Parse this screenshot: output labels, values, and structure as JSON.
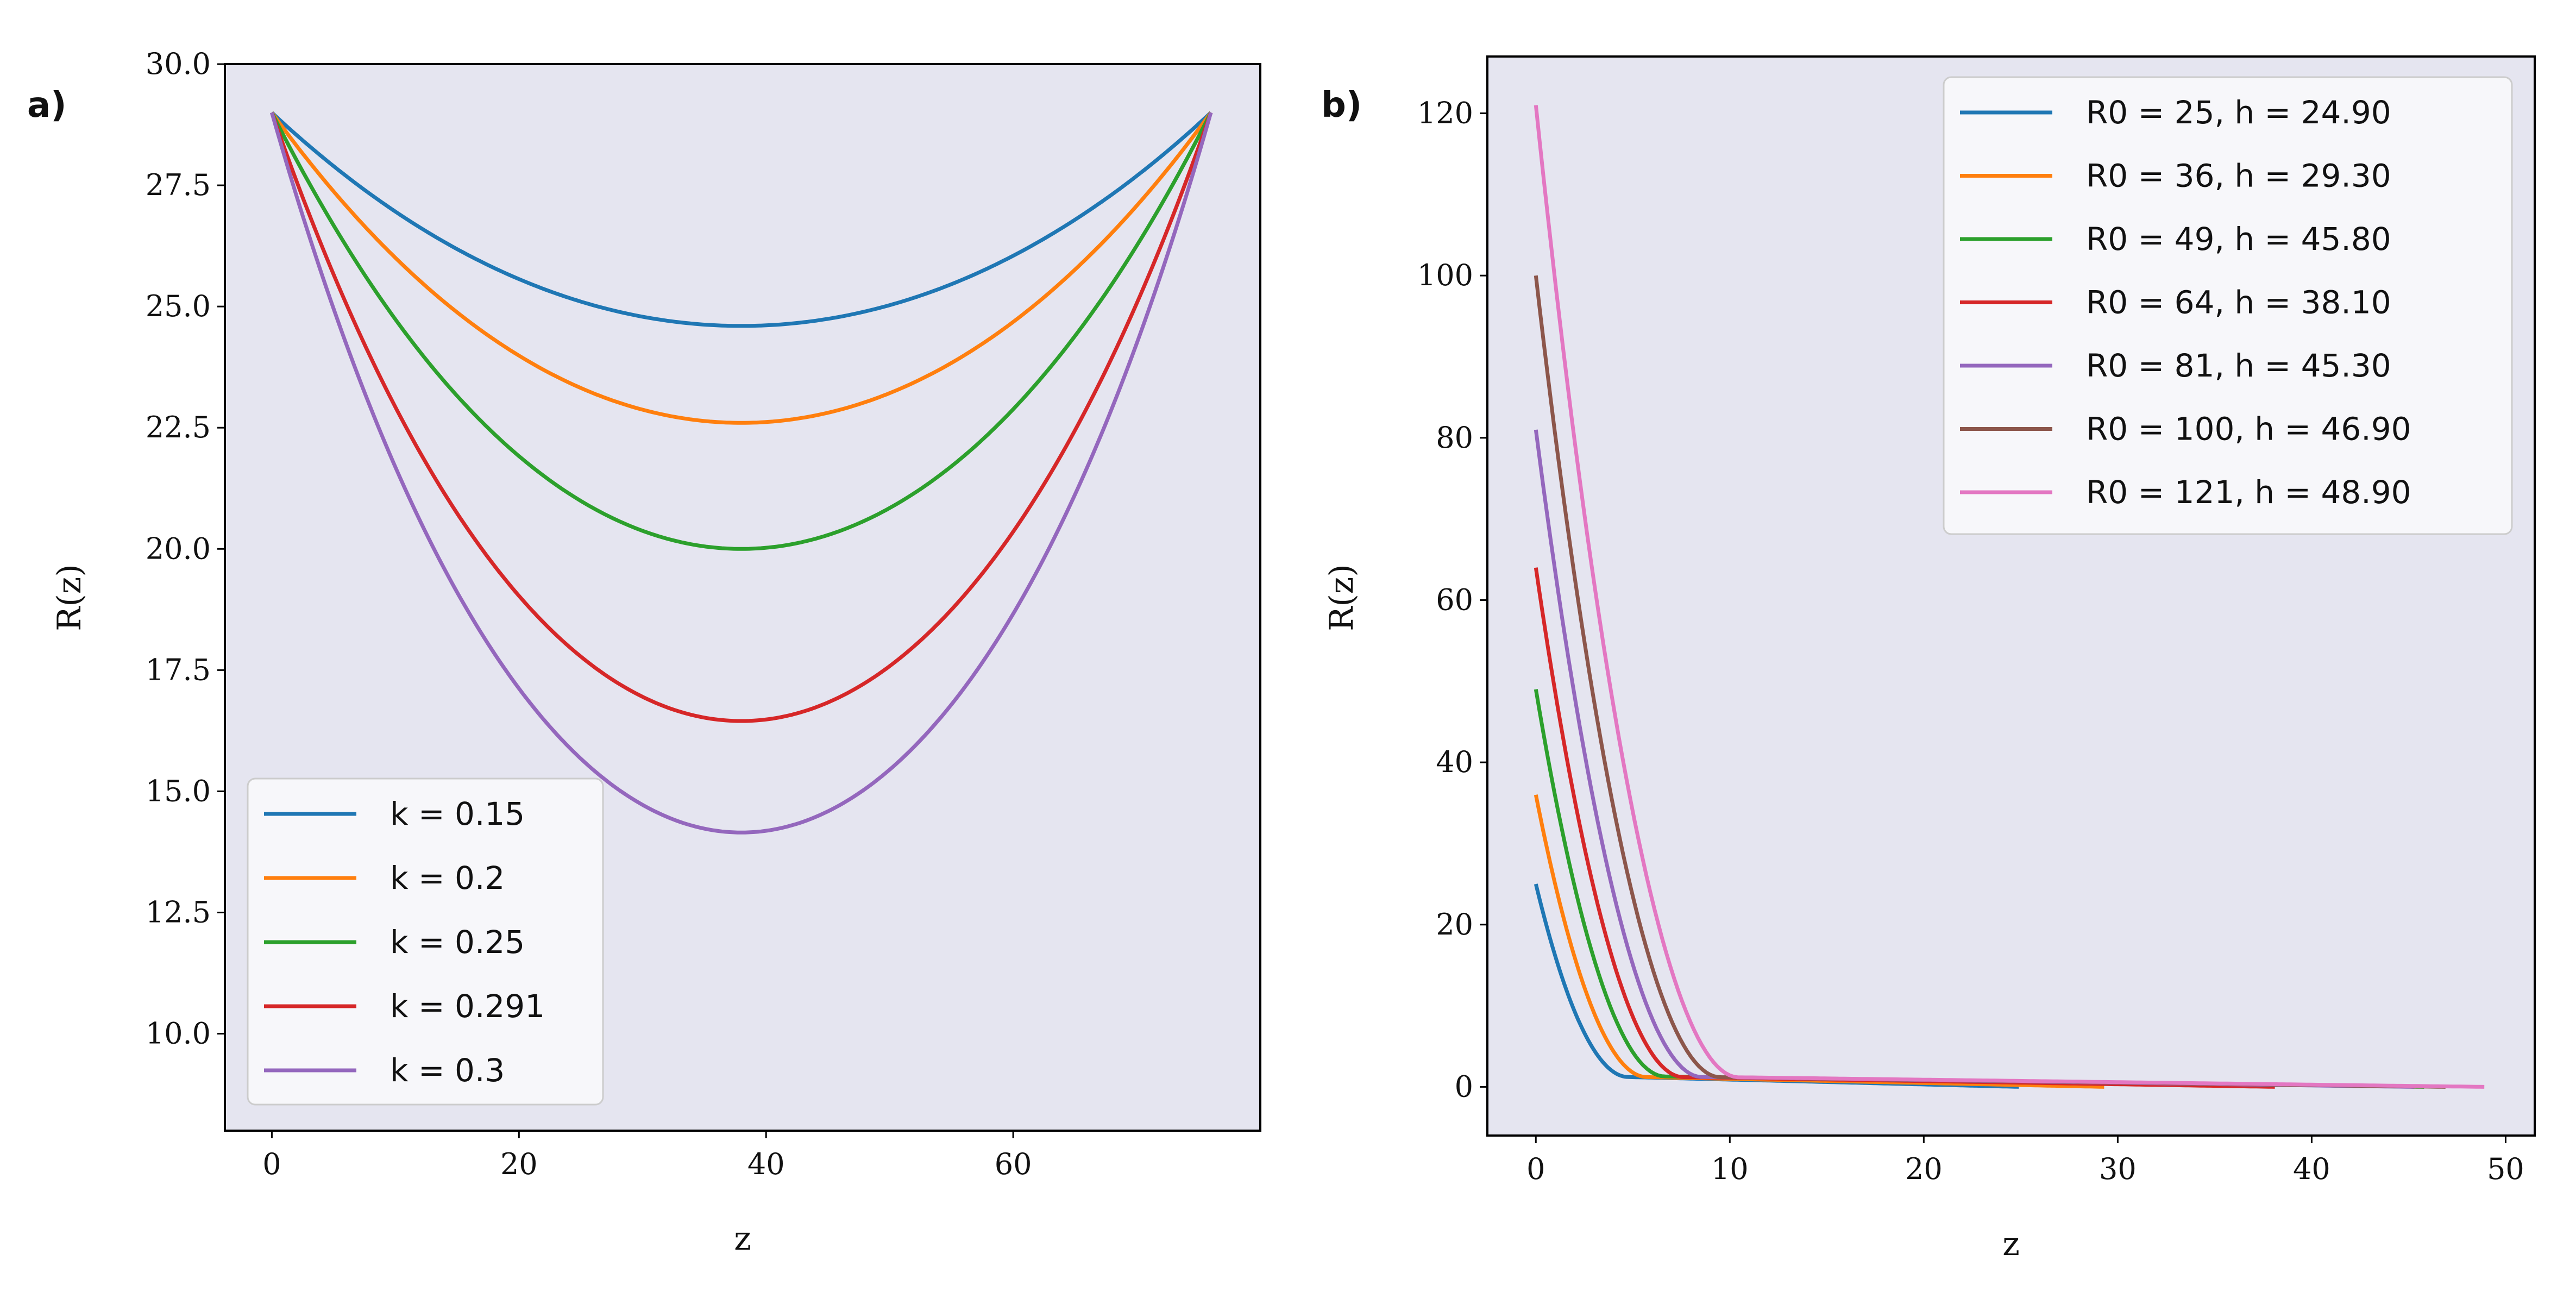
{
  "chart_data": [
    {
      "panel_label": "a)",
      "type": "line",
      "title": "",
      "xlabel": "z",
      "ylabel": "R(z)",
      "xlim": [
        -3.8,
        80
      ],
      "ylim": [
        8.0,
        30.0
      ],
      "xticks": [
        0,
        20,
        40,
        60
      ],
      "xtick_labels": [
        "0",
        "20",
        "40",
        "60"
      ],
      "yticks": [
        10.0,
        12.5,
        15.0,
        17.5,
        20.0,
        22.5,
        25.0,
        27.5,
        30.0
      ],
      "ytick_labels": [
        "10.0",
        "12.5",
        "15.0",
        "17.5",
        "20.0",
        "22.5",
        "25.0",
        "27.5",
        "30.0"
      ],
      "legend_position": "lower-left",
      "x_range": [
        0,
        76
      ],
      "endpoint_value": 29.0,
      "series": [
        {
          "name": "k = 0.15",
          "color": "#1f77b4",
          "min_value": 24.6
        },
        {
          "name": "k = 0.2",
          "color": "#ff7f0e",
          "min_value": 22.6
        },
        {
          "name": "k = 0.25",
          "color": "#2ca02c",
          "min_value": 20.0
        },
        {
          "name": "k = 0.291",
          "color": "#d62728",
          "min_value": 16.45
        },
        {
          "name": "k = 0.3",
          "color": "#9467bd",
          "min_value": 14.15
        }
      ]
    },
    {
      "panel_label": "b)",
      "type": "line",
      "title": "",
      "xlabel": "z",
      "ylabel": "R(z)",
      "xlim": [
        -2.5,
        51.5
      ],
      "ylim": [
        -6,
        127
      ],
      "xticks": [
        0,
        10,
        20,
        30,
        40,
        50
      ],
      "xtick_labels": [
        "0",
        "10",
        "20",
        "30",
        "40",
        "50"
      ],
      "yticks": [
        0,
        20,
        40,
        60,
        80,
        100,
        120
      ],
      "ytick_labels": [
        "0",
        "20",
        "40",
        "60",
        "80",
        "100",
        "120"
      ],
      "legend_position": "upper-right",
      "series": [
        {
          "name": "R0 = 25, h = 24.90",
          "color": "#1f77b4",
          "R0": 25,
          "h": 24.9
        },
        {
          "name": "R0 = 36, h = 29.30",
          "color": "#ff7f0e",
          "R0": 36,
          "h": 29.3
        },
        {
          "name": "R0 = 49, h = 45.80",
          "color": "#2ca02c",
          "R0": 49,
          "h": 45.8
        },
        {
          "name": "R0 = 64, h = 38.10",
          "color": "#d62728",
          "R0": 64,
          "h": 38.1
        },
        {
          "name": "R0 = 81, h = 45.30",
          "color": "#9467bd",
          "R0": 81,
          "h": 45.3
        },
        {
          "name": "R0 = 100, h = 46.90",
          "color": "#8c564b",
          "R0": 100,
          "h": 46.9
        },
        {
          "name": "R0 = 121, h = 48.90",
          "color": "#e377c2",
          "R0": 121,
          "h": 48.9
        }
      ]
    }
  ],
  "colors": {
    "plot_background": "#e5e5f0",
    "legend_background": "#f7f7fa",
    "legend_border": "#cccccc",
    "axis": "#000000"
  }
}
